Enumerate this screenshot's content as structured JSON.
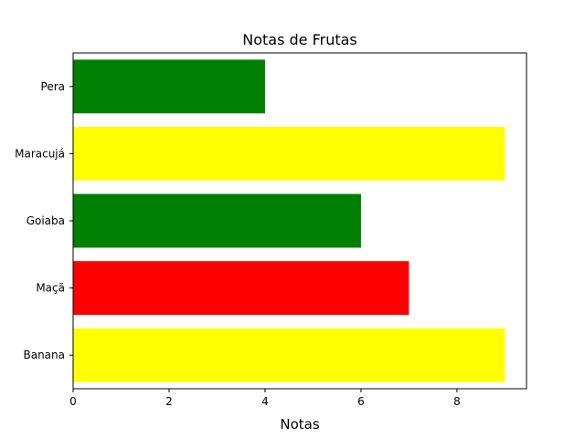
{
  "chart_data": {
    "type": "bar",
    "orientation": "horizontal",
    "title": "Notas de Frutas",
    "xlabel": "Notas",
    "ylabel": "",
    "categories": [
      "Banana",
      "Maçã",
      "Goiaba",
      "Maracujá",
      "Pera"
    ],
    "values": [
      9,
      7,
      6,
      9,
      4
    ],
    "bar_colors": [
      "#ffff00",
      "#ff0000",
      "#008000",
      "#ffff00",
      "#008000"
    ],
    "xlim": [
      0,
      9.45
    ],
    "xticks": [
      "0",
      "2",
      "4",
      "6",
      "8"
    ],
    "grid": false,
    "legend": "none"
  }
}
